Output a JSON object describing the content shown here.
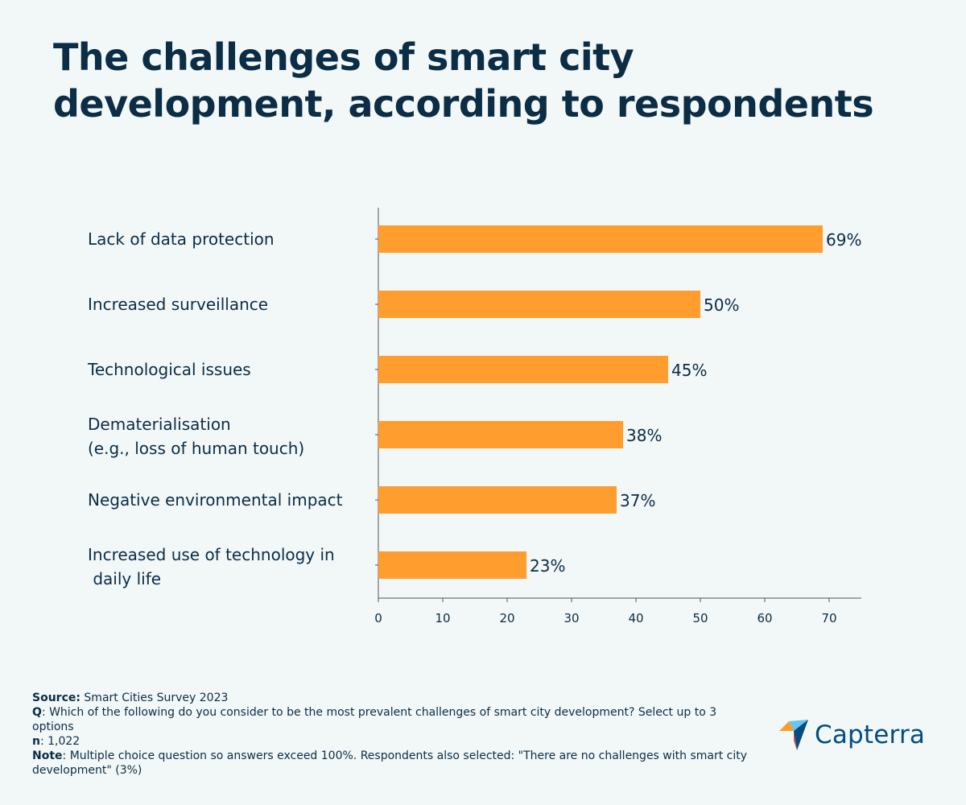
{
  "title": "The challenges of smart city development, according to respondents",
  "colors": {
    "bar": "#ff9d2e",
    "text": "#0b2d45",
    "axis": "#555555",
    "background": "#f2f7f7"
  },
  "chart_data": {
    "type": "bar",
    "orientation": "horizontal",
    "categories": [
      [
        "Lack of data protection"
      ],
      [
        "Increased surveillance"
      ],
      [
        "Technological issues"
      ],
      [
        "Dematerialisation",
        "(e.g., loss of human touch)"
      ],
      [
        "Negative environmental impact"
      ],
      [
        "Increased use of technology in",
        " daily life"
      ]
    ],
    "values": [
      69,
      50,
      45,
      38,
      37,
      23
    ],
    "value_labels": [
      "69%",
      "50%",
      "45%",
      "38%",
      "37%",
      "23%"
    ],
    "xticks": [
      0,
      10,
      20,
      30,
      40,
      50,
      60,
      70
    ],
    "xlim": [
      0,
      75
    ],
    "xlabel": "",
    "ylabel": "",
    "grid": false
  },
  "footer": {
    "source_label": "Source:",
    "source_text": " Smart Cities Survey 2023",
    "q_label": "Q",
    "q_text": ": Which of the following do you consider to be the most prevalent challenges of smart city development? Select up to 3 options",
    "n_label": "n",
    "n_text": ": 1,022",
    "note_label": "Note",
    "note_text": ": Multiple choice question so answers exceed 100%. Respondents also selected: \"There are no challenges with smart city development\" (3%)"
  },
  "logo": {
    "text": "Capterra",
    "icon": "capterra-arrow-icon"
  }
}
